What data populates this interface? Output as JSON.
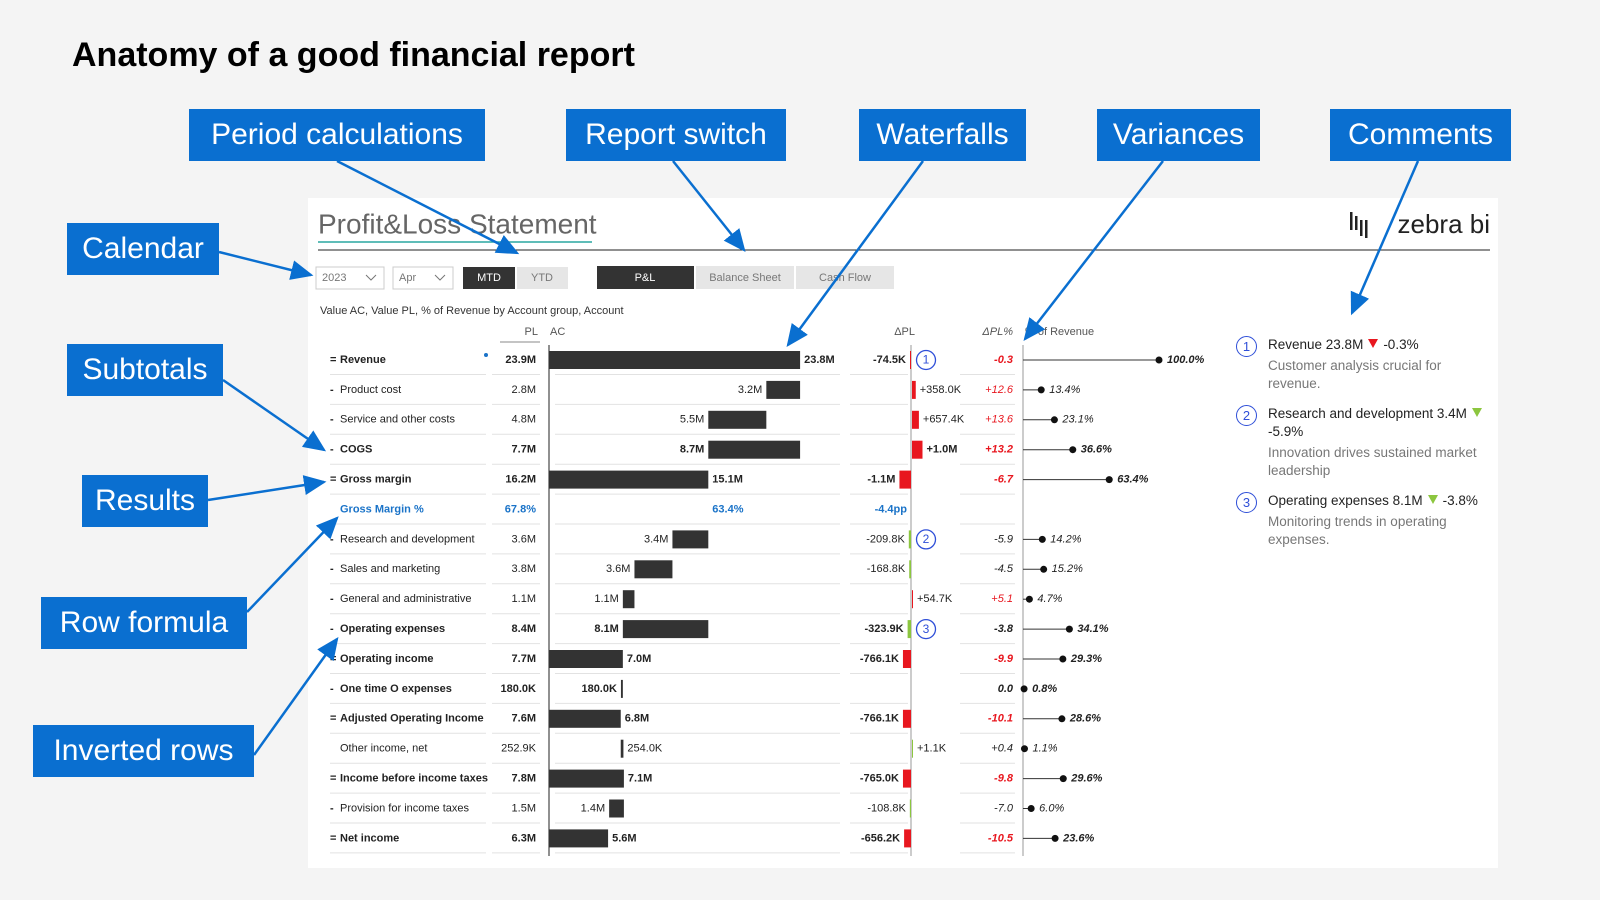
{
  "header": {
    "title": "Anatomy of a good financial report"
  },
  "callouts": [
    {
      "label": "Period calculations"
    },
    {
      "label": "Report switch"
    },
    {
      "label": "Waterfalls"
    },
    {
      "label": "Variances"
    },
    {
      "label": "Comments"
    },
    {
      "label": "Calendar"
    },
    {
      "label": "Subtotals"
    },
    {
      "label": "Results"
    },
    {
      "label": "Row formula"
    },
    {
      "label": "Inverted rows"
    }
  ],
  "report": {
    "title": "Profit&Loss Statement",
    "logo": "zebra bi",
    "filters": {
      "year": "2023",
      "month": "Apr",
      "periods": [
        "MTD",
        "YTD"
      ]
    },
    "tabs": [
      "P&L",
      "Balance Sheet",
      "Cash Flow"
    ],
    "subtitle": "Value AC, Value PL, % of Revenue by Account group, Account",
    "columns": {
      "pl": "PL",
      "ac": "AC",
      "dpl": "ΔPL",
      "dpct": "ΔPL%",
      "pct": "% of Revenue"
    },
    "rows": [
      {
        "prefix": "=",
        "label": "Revenue",
        "bold": true,
        "pl": "23.9M",
        "ac": 23.8,
        "ac_label": "23.8M",
        "bar": "result",
        "dpl": -74.5,
        "dpl_label": "-74.5K",
        "dpl_color": "#e8171f",
        "comment": 1,
        "dpct": "-0.3",
        "dpct_color": "#e8171f",
        "pct": 100.0,
        "pct_label": "100.0%"
      },
      {
        "prefix": "-",
        "label": "Product cost",
        "pl": "2.8M",
        "ac": 3.2,
        "ac_label": "3.2M",
        "bar": "minus",
        "dpl": 358.0,
        "dpl_label": "+358.0K",
        "dpl_color": "#e8171f",
        "dpct": "+12.6",
        "dpct_color": "#e8171f",
        "pct": 13.4,
        "pct_label": "13.4%"
      },
      {
        "prefix": "-",
        "label": "Service and other costs",
        "pl": "4.8M",
        "ac": 5.5,
        "ac_label": "5.5M",
        "bar": "minus",
        "dpl": 657.4,
        "dpl_label": "+657.4K",
        "dpl_color": "#e8171f",
        "dpct": "+13.6",
        "dpct_color": "#e8171f",
        "pct": 23.1,
        "pct_label": "23.1%"
      },
      {
        "prefix": "-",
        "label": "COGS",
        "bold": true,
        "pl": "7.7M",
        "ac": 8.7,
        "ac_label": "8.7M",
        "bar": "group",
        "dpl": 1000,
        "dpl_label": "+1.0M",
        "dpl_color": "#e8171f",
        "dpct": "+13.2",
        "dpct_color": "#e8171f",
        "pct": 36.6,
        "pct_label": "36.6%"
      },
      {
        "prefix": "=",
        "label": "Gross margin",
        "bold": true,
        "pl": "16.2M",
        "ac": 15.1,
        "ac_label": "15.1M",
        "bar": "result",
        "dpl": -1100,
        "dpl_label": "-1.1M",
        "dpl_color": "#e8171f",
        "dpct": "-6.7",
        "dpct_color": "#e8171f",
        "pct": 63.4,
        "pct_label": "63.4%"
      },
      {
        "label": "Gross Margin %",
        "bold": true,
        "color": "#1a73c8",
        "pl": "67.8%",
        "ac": 63.4,
        "ac_label": "63.4%",
        "bar": "none",
        "dpl": -4.4,
        "dpl_label": "-4.4pp"
      },
      {
        "prefix": "-",
        "label": "Research and development",
        "pl": "3.6M",
        "ac": 3.4,
        "ac_label": "3.4M",
        "bar": "minus",
        "dpl": -209.8,
        "dpl_label": "-209.8K",
        "dpl_color": "#8cc63f",
        "comment": 2,
        "dpct": "-5.9",
        "pct": 14.2,
        "pct_label": "14.2%"
      },
      {
        "prefix": "-",
        "label": "Sales and marketing",
        "pl": "3.8M",
        "ac": 3.6,
        "ac_label": "3.6M",
        "bar": "minus",
        "dpl": -168.8,
        "dpl_label": "-168.8K",
        "dpl_color": "#8cc63f",
        "dpct": "-4.5",
        "pct": 15.2,
        "pct_label": "15.2%"
      },
      {
        "prefix": "-",
        "label": "General and administrative",
        "pl": "1.1M",
        "ac": 1.1,
        "ac_label": "1.1M",
        "bar": "minus",
        "dpl": 54.7,
        "dpl_label": "+54.7K",
        "dpl_color": "#e8171f",
        "dpct": "+5.1",
        "dpct_color": "#e8171f",
        "pct": 4.7,
        "pct_label": "4.7%"
      },
      {
        "prefix": "-",
        "label": "Operating expenses",
        "bold": true,
        "pl": "8.4M",
        "ac": 8.1,
        "ac_label": "8.1M",
        "bar": "group",
        "dpl": -323.9,
        "dpl_label": "-323.9K",
        "dpl_color": "#8cc63f",
        "comment": 3,
        "dpct": "-3.8",
        "pct": 34.1,
        "pct_label": "34.1%"
      },
      {
        "prefix": "=",
        "label": "Operating income",
        "bold": true,
        "pl": "7.7M",
        "ac": 7.0,
        "ac_label": "7.0M",
        "bar": "result",
        "dpl": -766.1,
        "dpl_label": "-766.1K",
        "dpl_color": "#e8171f",
        "dpct": "-9.9",
        "dpct_color": "#e8171f",
        "pct": 29.3,
        "pct_label": "29.3%"
      },
      {
        "prefix": "-",
        "label": "One time O expenses",
        "bold": true,
        "pl": "180.0K",
        "ac": 0.18,
        "ac_label": "180.0K",
        "bar": "minus",
        "dpct": "0.0",
        "pct": 0.8,
        "pct_label": "0.8%"
      },
      {
        "prefix": "=",
        "label": "Adjusted Operating Income",
        "bold": true,
        "pl": "7.6M",
        "ac": 6.8,
        "ac_label": "6.8M",
        "bar": "result",
        "dpl": -766.1,
        "dpl_label": "-766.1K",
        "dpl_color": "#e8171f",
        "dpct": "-10.1",
        "dpct_color": "#e8171f",
        "pct": 28.6,
        "pct_label": "28.6%"
      },
      {
        "label": "Other income, net",
        "pl": "252.9K",
        "ac": 0.254,
        "ac_label": "254.0K",
        "bar": "plus",
        "dpl": 1.1,
        "dpl_label": "+1.1K",
        "dpl_color": "#8cc63f",
        "dpct": "+0.4",
        "pct": 1.1,
        "pct_label": "1.1%"
      },
      {
        "prefix": "=",
        "label": "Income before income taxes",
        "bold": true,
        "pl": "7.8M",
        "ac": 7.1,
        "ac_label": "7.1M",
        "bar": "result",
        "dpl": -765.0,
        "dpl_label": "-765.0K",
        "dpl_color": "#e8171f",
        "dpct": "-9.8",
        "dpct_color": "#e8171f",
        "pct": 29.6,
        "pct_label": "29.6%"
      },
      {
        "prefix": "-",
        "label": "Provision for income taxes",
        "pl": "1.5M",
        "ac": 1.4,
        "ac_label": "1.4M",
        "bar": "minus",
        "dpl": -108.8,
        "dpl_label": "-108.8K",
        "dpl_color": "#8cc63f",
        "dpct": "-7.0",
        "pct": 6.0,
        "pct_label": "6.0%"
      },
      {
        "prefix": "=",
        "label": "Net income",
        "bold": true,
        "pl": "6.3M",
        "ac": 5.6,
        "ac_label": "5.6M",
        "bar": "result",
        "dpl": -656.2,
        "dpl_label": "-656.2K",
        "dpl_color": "#e8171f",
        "dpct": "-10.5",
        "dpct_color": "#e8171f",
        "pct": 23.6,
        "pct_label": "23.6%"
      }
    ]
  },
  "comments": [
    {
      "marker": 1,
      "title": "Revenue 23.8M",
      "change": "-0.3%",
      "color": "#e8171f",
      "text": "Customer analysis crucial for revenue."
    },
    {
      "marker": 2,
      "title": "Research and development 3.4M",
      "change": "-5.9%",
      "color": "#8cc63f",
      "text": "Innovation drives sustained market leadership"
    },
    {
      "marker": 3,
      "title": "Operating expenses 8.1M",
      "change": "-3.8%",
      "color": "#8cc63f",
      "text": "Monitoring trends in operating expenses."
    }
  ]
}
